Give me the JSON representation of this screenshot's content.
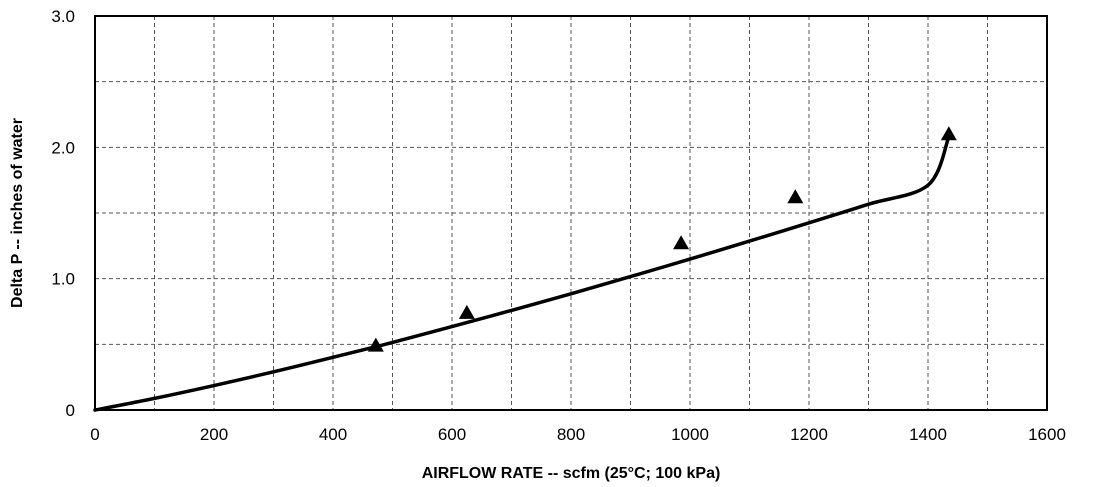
{
  "chart_data": {
    "type": "scatter",
    "title": "",
    "xlabel": "AIRFLOW RATE -- scfm (25°C; 100 kPa)",
    "ylabel": "Delta P -- inches of water",
    "xlim": [
      0,
      1600
    ],
    "ylim": [
      0,
      3.0
    ],
    "x_ticks": [
      0,
      200,
      400,
      600,
      800,
      1000,
      1200,
      1400,
      1600
    ],
    "x_tick_labels": [
      "0",
      "200",
      "400",
      "600",
      "800",
      "1000",
      "1200",
      "1400",
      "1600"
    ],
    "y_ticks": [
      0,
      1.0,
      2.0,
      3.0
    ],
    "y_tick_labels": [
      "0",
      "1.0",
      "2.0",
      "3.0"
    ],
    "x_grid_step": 100,
    "y_grid_step": 0.5,
    "grid": true,
    "legend": "none",
    "series": [
      {
        "type": "scatter",
        "marker": "triangle",
        "color": "#000000",
        "x": [
          472,
          625,
          985,
          1177,
          1435
        ],
        "y": [
          0.49,
          0.74,
          1.27,
          1.62,
          2.1
        ]
      },
      {
        "type": "line",
        "style": "smooth-fit",
        "color": "#000000",
        "x": [
          0,
          100,
          200,
          300,
          400,
          472,
          500,
          600,
          700,
          800,
          900,
          1000,
          1100,
          1200,
          1300,
          1400,
          1435
        ],
        "y": [
          0.0,
          0.088,
          0.186,
          0.291,
          0.401,
          0.482,
          0.515,
          0.635,
          0.758,
          0.885,
          1.016,
          1.149,
          1.286,
          1.425,
          1.567,
          1.712,
          2.08
        ]
      }
    ]
  }
}
